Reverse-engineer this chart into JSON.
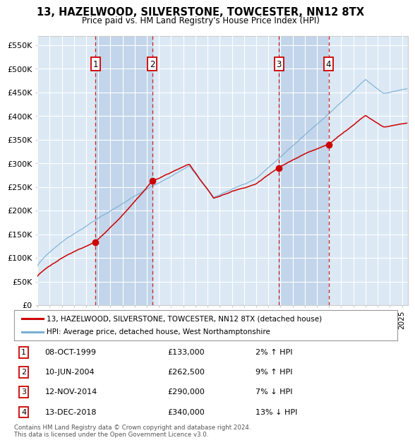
{
  "title": "13, HAZELWOOD, SILVERSTONE, TOWCESTER, NN12 8TX",
  "subtitle": "Price paid vs. HM Land Registry's House Price Index (HPI)",
  "background_color": "#ffffff",
  "plot_bg_color": "#dce9f5",
  "plot_bg_dark": "#c8daf0",
  "grid_color": "#ffffff",
  "sale_line_color": "#cc0000",
  "hpi_line_color": "#7bafd4",
  "sale_marker_color": "#cc0000",
  "transactions": [
    {
      "num": 1,
      "date_x": 1999.77,
      "price": 133000,
      "label": "08-OCT-1999",
      "amount": "£133,000",
      "note": "2% ↑ HPI"
    },
    {
      "num": 2,
      "date_x": 2004.44,
      "price": 262500,
      "label": "10-JUN-2004",
      "amount": "£262,500",
      "note": "9% ↑ HPI"
    },
    {
      "num": 3,
      "date_x": 2014.87,
      "price": 290000,
      "label": "12-NOV-2014",
      "amount": "£290,000",
      "note": "7% ↓ HPI"
    },
    {
      "num": 4,
      "date_x": 2018.96,
      "price": 340000,
      "label": "13-DEC-2018",
      "amount": "£340,000",
      "note": "13% ↓ HPI"
    }
  ],
  "xmin": 1995.0,
  "xmax": 2025.5,
  "ymin": 0,
  "ymax": 570000,
  "yticks": [
    0,
    50000,
    100000,
    150000,
    200000,
    250000,
    300000,
    350000,
    400000,
    450000,
    500000,
    550000
  ],
  "ytick_labels": [
    "£0",
    "£50K",
    "£100K",
    "£150K",
    "£200K",
    "£250K",
    "£300K",
    "£350K",
    "£400K",
    "£450K",
    "£500K",
    "£550K"
  ],
  "footer": "Contains HM Land Registry data © Crown copyright and database right 2024.\nThis data is licensed under the Open Government Licence v3.0.",
  "legend_sale": "13, HAZELWOOD, SILVERSTONE, TOWCESTER, NN12 8TX (detached house)",
  "legend_hpi": "HPI: Average price, detached house, West Northamptonshire"
}
